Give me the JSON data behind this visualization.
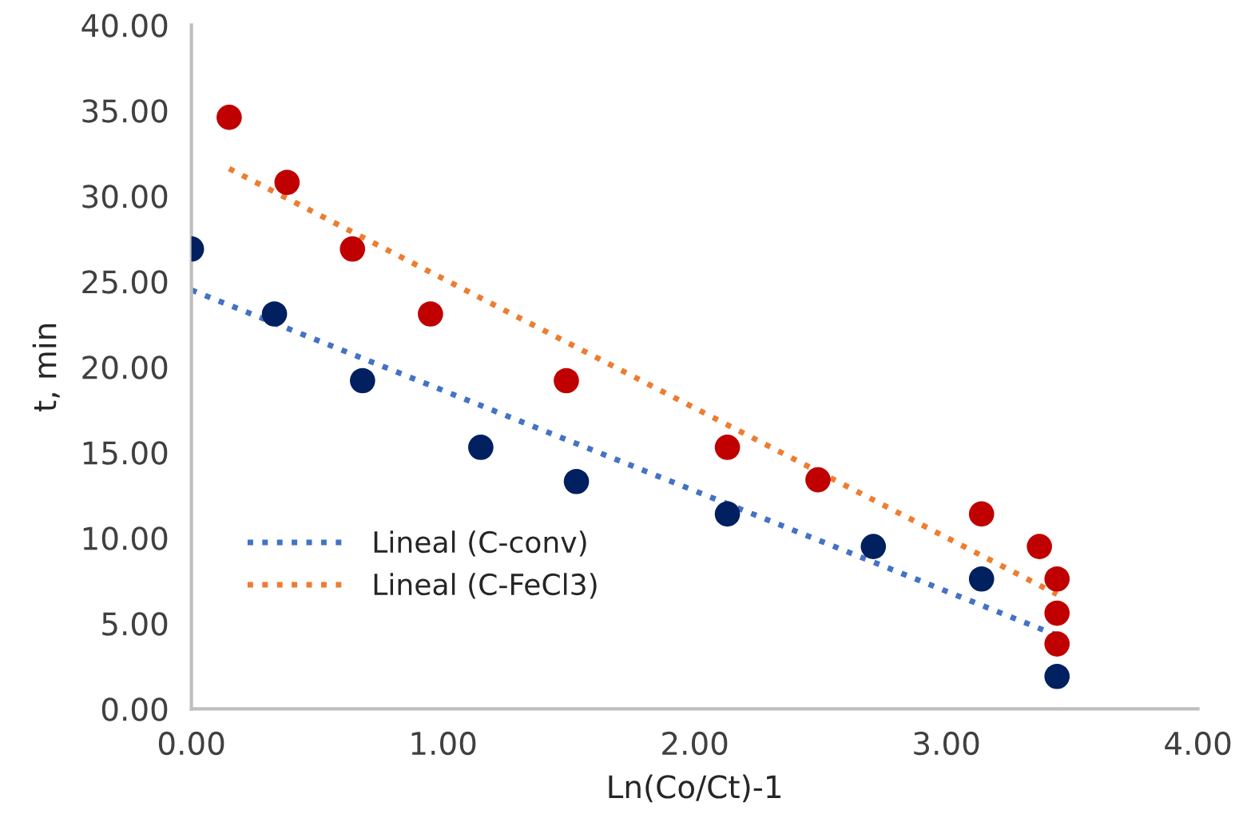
{
  "chart_data": {
    "type": "scatter",
    "xlabel": "Ln(Co/Ct)-1",
    "ylabel": "t, min",
    "xlim": [
      0,
      4
    ],
    "xticks": [
      {
        "value": 0,
        "label": "0.00"
      },
      {
        "value": 1,
        "label": "1.00"
      },
      {
        "value": 2,
        "label": "2.00"
      },
      {
        "value": 3,
        "label": "3.00"
      },
      {
        "value": 4,
        "label": "4.00"
      }
    ],
    "ylim": [
      0,
      40
    ],
    "yticks": [
      {
        "value": 0,
        "label": "0.00"
      },
      {
        "value": 5,
        "label": "5.00"
      },
      {
        "value": 10,
        "label": "10.00"
      },
      {
        "value": 15,
        "label": "15.00"
      },
      {
        "value": 20,
        "label": "20.00"
      },
      {
        "value": 25,
        "label": "25.00"
      },
      {
        "value": 30,
        "label": "30.00"
      },
      {
        "value": 35,
        "label": "35.00"
      },
      {
        "value": 40,
        "label": "40.00"
      }
    ],
    "grid": false,
    "legend": "bottom left",
    "marker": "circle",
    "series": [
      {
        "color": "#002060",
        "x": [
          0,
          0.33,
          0.68,
          1.15,
          1.53,
          2.13,
          2.71,
          3.14,
          3.44
        ],
        "values": [
          26.9,
          23.1,
          19.2,
          15.3,
          13.3,
          11.4,
          9.5,
          7.6,
          1.9
        ]
      },
      {
        "color": "#c00000",
        "x": [
          0.15,
          0.38,
          0.64,
          0.95,
          1.49,
          2.13,
          2.49,
          3.14,
          3.37,
          3.44,
          3.44,
          3.44
        ],
        "values": [
          34.6,
          30.8,
          26.9,
          23.1,
          19.2,
          15.3,
          13.4,
          11.4,
          9.5,
          7.6,
          5.6,
          3.8
        ]
      },
      {
        "type": "line",
        "name": "Lineal (C-conv)",
        "color": "#4472c4",
        "line_style": "dotted",
        "marker": "none",
        "x": [
          0,
          3.44
        ],
        "values": [
          24.5,
          4.3
        ]
      },
      {
        "type": "line",
        "name": "Lineal (C-FeCl3)",
        "color": "#ed7d31",
        "line_style": "dotted",
        "marker": "none",
        "x": [
          0.15,
          3.44
        ],
        "values": [
          31.6,
          6.7
        ]
      }
    ]
  }
}
